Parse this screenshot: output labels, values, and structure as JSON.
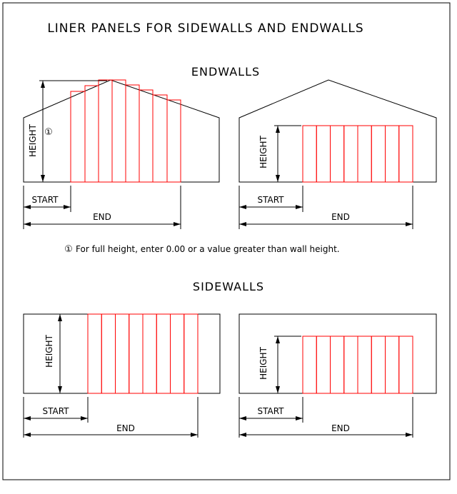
{
  "title": "LINER PANELS FOR SIDEWALLS AND ENDWALLS",
  "endwalls_heading": "ENDWALLS",
  "sidewalls_heading": "SIDEWALLS",
  "labels": {
    "height": "HEIGHT",
    "start": "START",
    "end": "END",
    "note_marker": "①"
  },
  "note": "For full height, enter 0.00 or a value greater than wall height.",
  "colors": {
    "outline": "#000000",
    "liner_panel": "#ff0000",
    "background": "#ffffff"
  }
}
